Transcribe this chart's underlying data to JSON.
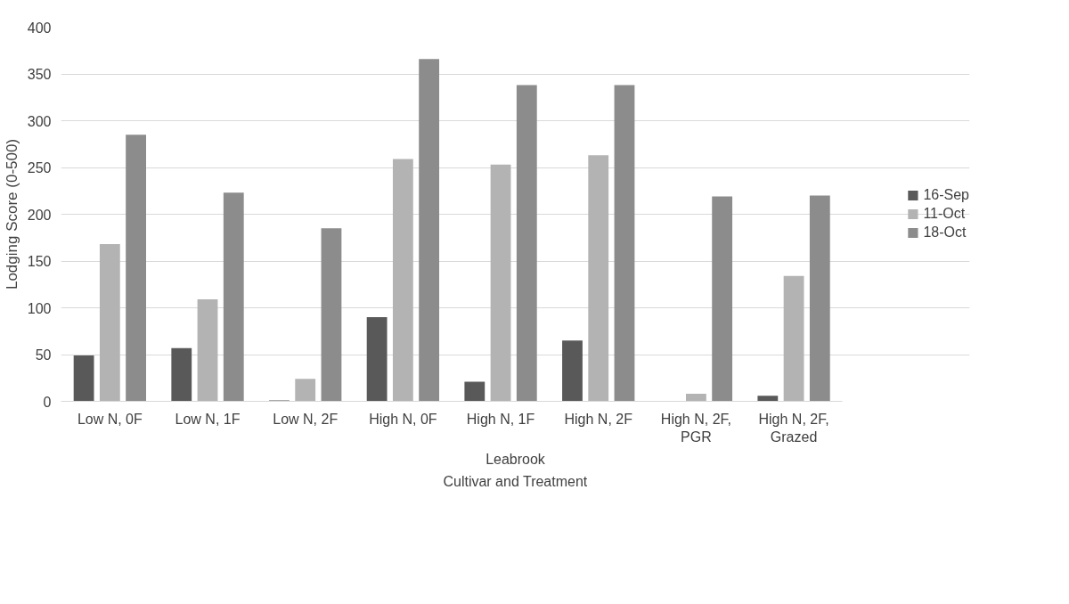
{
  "chart_data": {
    "type": "bar",
    "ylabel": "Lodging Score (0-500)",
    "xlabel": "Cultivar and Treatment",
    "annotations": [
      "Leabrook"
    ],
    "categories": [
      "Low N, 0F",
      "Low N, 1F",
      "Low N, 2F",
      "High N, 0F",
      "High N, 1F",
      "High N, 2F",
      "High N, 2F, PGR",
      "High N, 2F, Grazed"
    ],
    "series": [
      {
        "name": "16-Sep",
        "color": "#595959",
        "values": [
          49,
          57,
          1,
          90,
          21,
          65,
          0,
          6
        ]
      },
      {
        "name": "11-Oct",
        "color": "#b3b3b3",
        "values": [
          168,
          109,
          24,
          259,
          253,
          263,
          8,
          134
        ]
      },
      {
        "name": "18-Oct",
        "color": "#8c8c8c",
        "values": [
          285,
          223,
          185,
          366,
          338,
          338,
          219,
          220
        ]
      }
    ],
    "ylim": [
      0,
      400
    ],
    "yticks": [
      0,
      50,
      100,
      150,
      200,
      250,
      300,
      350,
      400
    ],
    "grid": "y",
    "legend": "right"
  }
}
